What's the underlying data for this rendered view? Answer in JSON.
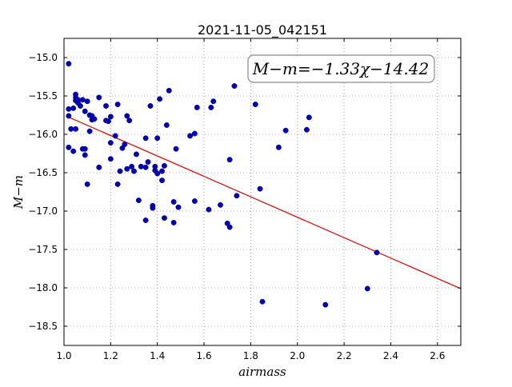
{
  "chart_data": {
    "type": "scatter",
    "title": "2021-11-05_042151",
    "xlabel": "airmass",
    "ylabel": "M−m",
    "xlim": [
      1.0,
      2.7
    ],
    "ylim": [
      -18.75,
      -14.75
    ],
    "xticks": [
      1.0,
      1.2,
      1.4,
      1.6,
      1.8,
      2.0,
      2.2,
      2.4,
      2.6
    ],
    "xtick_labels": [
      "1.0",
      "1.2",
      "1.4",
      "1.6",
      "1.8",
      "2.0",
      "2.2",
      "2.4",
      "2.6"
    ],
    "yticks": [
      -15.0,
      -15.5,
      -16.0,
      -16.5,
      -17.0,
      -17.5,
      -18.0,
      -18.5
    ],
    "ytick_labels": [
      "−15.0",
      "−15.5",
      "−16.0",
      "−16.5",
      "−17.0",
      "−17.5",
      "−18.0",
      "−18.5"
    ],
    "grid": true,
    "annotation": "M−m=−1.33χ−14.42",
    "fit": {
      "slope": -1.33,
      "intercept": -14.42,
      "x_range": [
        1.02,
        2.7
      ],
      "color": "#dd0000"
    },
    "point_color": "#0000bb",
    "points": [
      [
        1.02,
        -15.08
      ],
      [
        1.02,
        -15.76
      ],
      [
        1.02,
        -15.67
      ],
      [
        1.02,
        -16.17
      ],
      [
        1.03,
        -15.93
      ],
      [
        1.04,
        -16.22
      ],
      [
        1.04,
        -15.66
      ],
      [
        1.05,
        -15.93
      ],
      [
        1.05,
        -15.56
      ],
      [
        1.05,
        -15.48
      ],
      [
        1.05,
        -15.52
      ],
      [
        1.06,
        -15.59
      ],
      [
        1.06,
        -15.55
      ],
      [
        1.07,
        -15.63
      ],
      [
        1.08,
        -15.55
      ],
      [
        1.08,
        -16.19
      ],
      [
        1.09,
        -15.7
      ],
      [
        1.09,
        -16.19
      ],
      [
        1.09,
        -16.27
      ],
      [
        1.1,
        -15.57
      ],
      [
        1.1,
        -16.65
      ],
      [
        1.11,
        -15.75
      ],
      [
        1.11,
        -15.96
      ],
      [
        1.12,
        -15.81
      ],
      [
        1.12,
        -15.76
      ],
      [
        1.13,
        -15.8
      ],
      [
        1.15,
        -15.52
      ],
      [
        1.15,
        -16.43
      ],
      [
        1.18,
        -15.82
      ],
      [
        1.18,
        -15.63
      ],
      [
        1.19,
        -15.83
      ],
      [
        1.2,
        -16.11
      ],
      [
        1.2,
        -15.77
      ],
      [
        1.2,
        -16.32
      ],
      [
        1.22,
        -16.02
      ],
      [
        1.23,
        -15.61
      ],
      [
        1.23,
        -16.65
      ],
      [
        1.24,
        -16.48
      ],
      [
        1.25,
        -16.18
      ],
      [
        1.26,
        -16.13
      ],
      [
        1.27,
        -15.76
      ],
      [
        1.27,
        -16.45
      ],
      [
        1.28,
        -15.82
      ],
      [
        1.29,
        -16.42
      ],
      [
        1.3,
        -16.48
      ],
      [
        1.31,
        -16.26
      ],
      [
        1.32,
        -16.86
      ],
      [
        1.33,
        -16.42
      ],
      [
        1.35,
        -16.43
      ],
      [
        1.35,
        -17.12
      ],
      [
        1.35,
        -16.05
      ],
      [
        1.36,
        -16.36
      ],
      [
        1.37,
        -15.63
      ],
      [
        1.38,
        -16.93
      ],
      [
        1.38,
        -16.96
      ],
      [
        1.39,
        -16.42
      ],
      [
        1.39,
        -16.47
      ],
      [
        1.4,
        -16.51
      ],
      [
        1.4,
        -16.05
      ],
      [
        1.41,
        -15.54
      ],
      [
        1.42,
        -16.48
      ],
      [
        1.42,
        -16.6
      ],
      [
        1.43,
        -17.09
      ],
      [
        1.43,
        -16.41
      ],
      [
        1.44,
        -15.88
      ],
      [
        1.45,
        -15.43
      ],
      [
        1.47,
        -16.88
      ],
      [
        1.47,
        -17.15
      ],
      [
        1.48,
        -16.19
      ],
      [
        1.49,
        -16.95
      ],
      [
        1.54,
        -16.02
      ],
      [
        1.56,
        -15.99
      ],
      [
        1.56,
        -16.87
      ],
      [
        1.57,
        -15.65
      ],
      [
        1.62,
        -16.98
      ],
      [
        1.63,
        -15.65
      ],
      [
        1.64,
        -15.57
      ],
      [
        1.67,
        -16.92
      ],
      [
        1.7,
        -17.16
      ],
      [
        1.71,
        -16.33
      ],
      [
        1.71,
        -17.21
      ],
      [
        1.73,
        -15.37
      ],
      [
        1.74,
        -16.8
      ],
      [
        1.82,
        -15.61
      ],
      [
        1.84,
        -16.71
      ],
      [
        1.85,
        -18.18
      ],
      [
        1.92,
        -16.17
      ],
      [
        1.95,
        -15.95
      ],
      [
        2.04,
        -15.94
      ],
      [
        2.05,
        -15.78
      ],
      [
        2.12,
        -18.22
      ],
      [
        2.3,
        -18.01
      ],
      [
        2.34,
        -17.54
      ]
    ]
  }
}
